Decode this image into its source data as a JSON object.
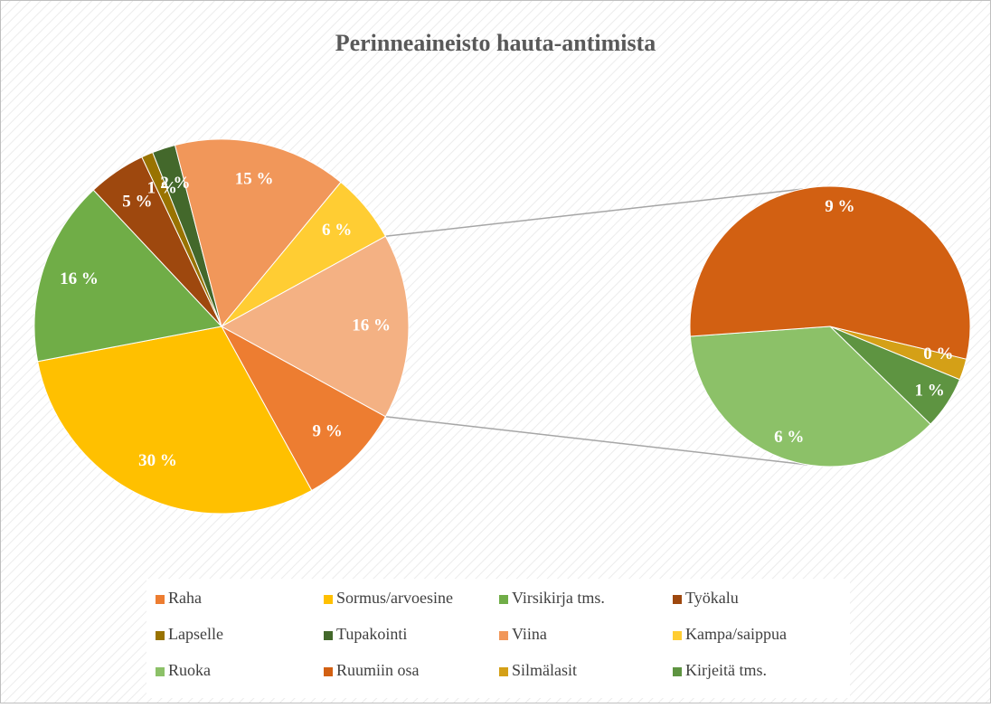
{
  "chart_data": {
    "type": "pie-of-pie",
    "title": "Perinneaineisto hauta-antimista",
    "categories": [
      "Raha",
      "Sormus/arvoesine",
      "Virsikirja tms.",
      "Työkalu",
      "Lapselle",
      "Tupakointi",
      "Viina",
      "Kampa/saippua",
      null
    ],
    "values": [
      9,
      30,
      16,
      5,
      1,
      2,
      15,
      6,
      16
    ],
    "value_labels": [
      "9 %",
      "30 %",
      "16 %",
      "5 %",
      "1 %",
      "2 %",
      "15 %",
      "6 %",
      "16 %"
    ],
    "colors": [
      "#ED7D31",
      "#FFC000",
      "#70AD47",
      "#9E480E",
      "#997300",
      "#43682B",
      "#F1975A",
      "#FFCD33",
      "#F4B183"
    ],
    "secondary": {
      "categories": [
        "Ruoka",
        "Ruumiin osa",
        "Silmälasit",
        "Kirjeitä tms."
      ],
      "values": [
        6,
        9,
        0.4,
        1
      ],
      "value_labels": [
        "6 %",
        "9 %",
        "0 %",
        "1 %"
      ],
      "colors": [
        "#8CC168",
        "#D26012",
        "#D4A017",
        "#5E9441"
      ]
    }
  }
}
